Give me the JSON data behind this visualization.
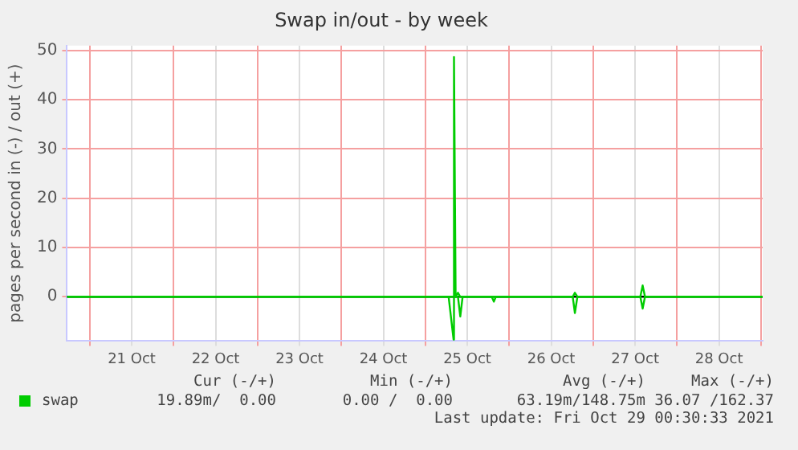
{
  "chart_data": {
    "type": "line",
    "title": "Swap in/out - by week",
    "ylabel": "pages per second in (-) / out (+)",
    "x": [
      "2021-10-20T17:30",
      "2021-10-25T06:40",
      "2021-10-25T08:05",
      "2021-10-25T08:12",
      "2021-10-25T08:40",
      "2021-10-25T09:20",
      "2021-10-25T10:00",
      "2021-10-25T10:40",
      "2021-10-25T19:00",
      "2021-10-25T19:36",
      "2021-10-25T20:10",
      "2021-10-26T18:10",
      "2021-10-26T18:47",
      "2021-10-26T19:30",
      "2021-10-27T13:30",
      "2021-10-27T14:10",
      "2021-10-27T14:50",
      "2021-10-29T00:30"
    ],
    "series": [
      {
        "name": "swap",
        "color": "#00cc00",
        "values": [
          0,
          0,
          0,
          48.7,
          0,
          0.8,
          0,
          0,
          0,
          0,
          0,
          0,
          0.8,
          0,
          0,
          2.3,
          0,
          0
        ]
      },
      {
        "color": "#00cc00",
        "values": [
          0,
          0,
          -8.7,
          0,
          0,
          0,
          -4,
          0,
          0,
          -1,
          0,
          0,
          -3.3,
          0,
          0,
          -2.4,
          0,
          0
        ]
      }
    ],
    "xlim": [
      "2021-10-20T17:30",
      "2021-10-29T00:30"
    ],
    "xticks": [
      {
        "value": "2021-10-21T00:00",
        "label": null
      },
      {
        "value": "2021-10-21T12:00",
        "label": "21 Oct"
      },
      {
        "value": "2021-10-22T00:00",
        "label": null
      },
      {
        "value": "2021-10-22T12:00",
        "label": "22 Oct"
      },
      {
        "value": "2021-10-23T00:00",
        "label": null
      },
      {
        "value": "2021-10-23T12:00",
        "label": "23 Oct"
      },
      {
        "value": "2021-10-24T00:00",
        "label": null
      },
      {
        "value": "2021-10-24T12:00",
        "label": "24 Oct"
      },
      {
        "value": "2021-10-25T00:00",
        "label": null
      },
      {
        "value": "2021-10-25T12:00",
        "label": "25 Oct"
      },
      {
        "value": "2021-10-26T00:00",
        "label": null
      },
      {
        "value": "2021-10-26T12:00",
        "label": "26 Oct"
      },
      {
        "value": "2021-10-27T00:00",
        "label": null
      },
      {
        "value": "2021-10-27T12:00",
        "label": "27 Oct"
      },
      {
        "value": "2021-10-28T00:00",
        "label": null
      },
      {
        "value": "2021-10-28T12:00",
        "label": "28 Oct"
      },
      {
        "value": "2021-10-29T00:00",
        "label": null
      }
    ],
    "ylim": [
      -9,
      51
    ],
    "yticks": [
      0,
      10,
      20,
      30,
      40,
      50
    ],
    "ref_lines": [
      {
        "axis": "y",
        "value": 0,
        "color": "#000000"
      }
    ],
    "grid": true,
    "legend": "bottom",
    "marker": "none",
    "line_style": "solid",
    "annotations": [
      "Cur (-/+)",
      "Min (-/+)",
      "Avg (-/+)",
      "Max (-/+)",
      "19.89m/  0.00",
      "0.00 /  0.00",
      "63.19m/148.75m",
      "36.07 /162.37",
      "Last update: Fri Oct 29 00:30:33 2021"
    ]
  }
}
